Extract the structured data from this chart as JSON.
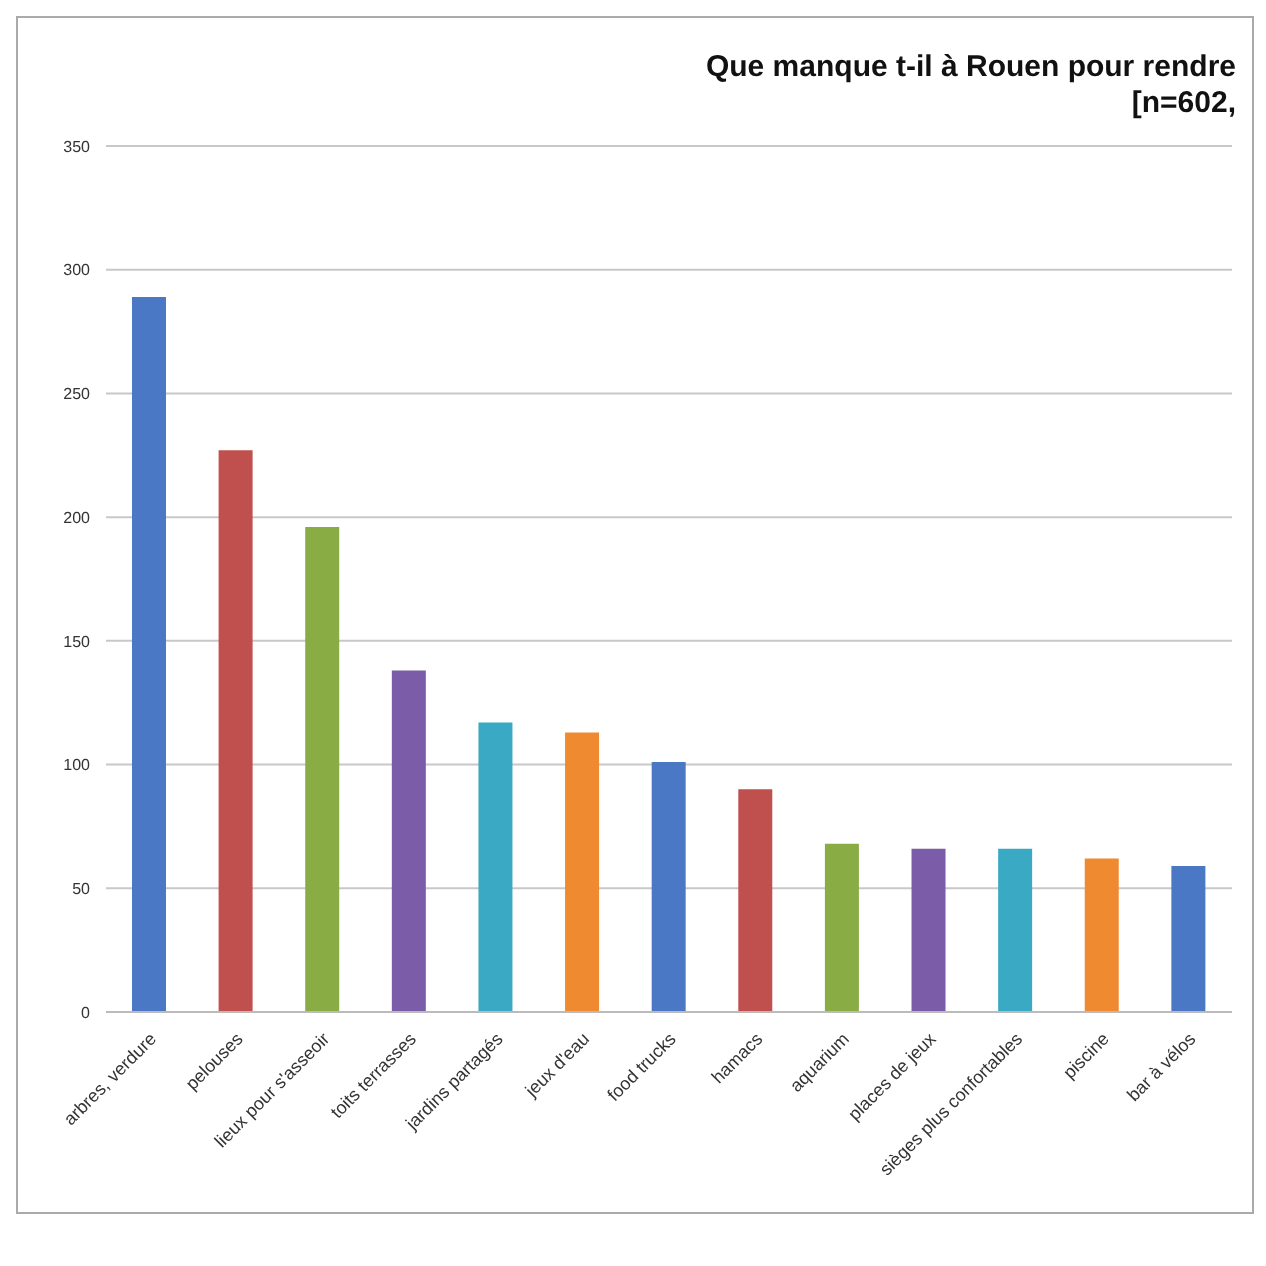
{
  "chart_data": {
    "type": "bar",
    "title": "Que manque t-il à Rouen pour rendre",
    "subtitle": "[n=602,",
    "categories": [
      "arbres, verdure",
      "pelouses",
      "lieux pour s'asseoir",
      "toits terrasses",
      "jardins partagés",
      "jeux d'eau",
      "food trucks",
      "hamacs",
      "aquarium",
      "places de jeux",
      "sièges plus confortables",
      "piscine",
      "bar à vélos"
    ],
    "values": [
      289,
      227,
      196,
      138,
      117,
      113,
      101,
      90,
      68,
      66,
      66,
      62,
      59
    ],
    "colors": [
      "#4a78c4",
      "#c0504d",
      "#8aac44",
      "#7a5ca8",
      "#3aaac4",
      "#f08a30",
      "#4a78c4",
      "#c0504d",
      "#8aac44",
      "#7a5ca8",
      "#3aaac4",
      "#f08a30",
      "#4a78c4"
    ],
    "ylim": [
      0,
      350
    ],
    "yticks": [
      0,
      50,
      100,
      150,
      200,
      250,
      300,
      350
    ],
    "grid": "y"
  }
}
